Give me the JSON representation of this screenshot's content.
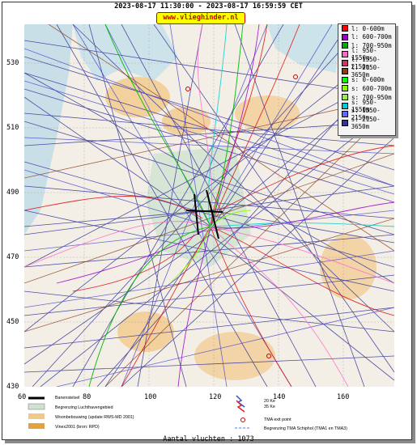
{
  "header": {
    "title": "2023-08-17 11:30:00 - 2023-08-17 16:59:59 CET",
    "site_url": "www.vlieghinder.nl"
  },
  "axes": {
    "y_ticks": [
      "530",
      "510",
      "490",
      "470",
      "450",
      "430"
    ],
    "x_ticks": [
      "60",
      "80",
      "100",
      "120",
      "140",
      "160"
    ]
  },
  "legend": {
    "entries": [
      {
        "label": "l: 0-600m",
        "color": "#ff0000"
      },
      {
        "label": "l: 600-700m",
        "color": "#9a00cc"
      },
      {
        "label": "l: 700-950m",
        "color": "#00aa00"
      },
      {
        "label": "l: 950-1550m",
        "color": "#ff66cc"
      },
      {
        "label": "l: 1550-2150m",
        "color": "#cc3366"
      },
      {
        "label": "l: 2150-3650m",
        "color": "#8b3a1a"
      },
      {
        "label": "s: 0-600m",
        "color": "#00ff00"
      },
      {
        "label": "s: 600-700m",
        "color": "#88ff00"
      },
      {
        "label": "s: 700-950m",
        "color": "#99ee44"
      },
      {
        "label": "s: 950-1550m",
        "color": "#00cccc"
      },
      {
        "label": "s: 1550-2150m",
        "color": "#6666ff"
      },
      {
        "label": "s: 2150-3650m",
        "color": "#333399"
      }
    ]
  },
  "bottom_legend": {
    "runway": "Banenstelsel",
    "airport_boundary": "Begrenzing Luchthavengebied",
    "housing": "Woonbebouwing (update RWS-MD 2001)",
    "vinex": "Vinex2001 (bron: RPD)",
    "noise_20": "20 Ke",
    "noise_35": "35 Ke",
    "tma_exit": "TMA exit point",
    "tma_boundary": "Begrenzing TMA Schiphol  (TMA1 en TMA3)"
  },
  "footer": {
    "flight_count": "Aantal vluchten : 1073"
  }
}
